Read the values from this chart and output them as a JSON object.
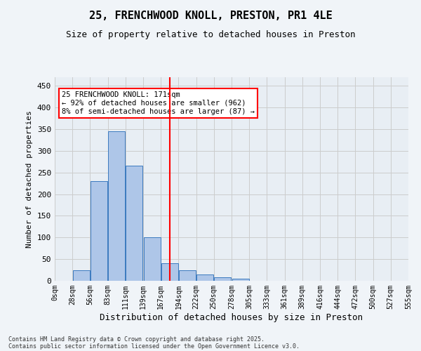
{
  "title_line1": "25, FRENCHWOOD KNOLL, PRESTON, PR1 4LE",
  "title_line2": "Size of property relative to detached houses in Preston",
  "xlabel": "Distribution of detached houses by size in Preston",
  "ylabel": "Number of detached properties",
  "bin_labels": [
    "0sqm",
    "28sqm",
    "56sqm",
    "83sqm",
    "111sqm",
    "139sqm",
    "167sqm",
    "194sqm",
    "222sqm",
    "250sqm",
    "278sqm",
    "305sqm",
    "333sqm",
    "361sqm",
    "389sqm",
    "416sqm",
    "444sqm",
    "472sqm",
    "500sqm",
    "527sqm",
    "555sqm"
  ],
  "bar_values": [
    0,
    25,
    230,
    345,
    265,
    100,
    40,
    25,
    15,
    8,
    5,
    0,
    0,
    0,
    0,
    0,
    0,
    0,
    0,
    0
  ],
  "bar_color": "#aec6e8",
  "bar_edge_color": "#3a7abf",
  "vline_x": 6.0,
  "vline_color": "red",
  "annotation_text": "25 FRENCHWOOD KNOLL: 171sqm\n← 92% of detached houses are smaller (962)\n8% of semi-detached houses are larger (87) →",
  "annotation_box_color": "white",
  "annotation_box_edge": "red",
  "ylim": [
    0,
    470
  ],
  "yticks": [
    0,
    50,
    100,
    150,
    200,
    250,
    300,
    350,
    400,
    450
  ],
  "grid_color": "#cccccc",
  "background_color": "#e8eef4",
  "fig_background": "#f0f4f8",
  "footer_line1": "Contains HM Land Registry data © Crown copyright and database right 2025.",
  "footer_line2": "Contains public sector information licensed under the Open Government Licence v3.0."
}
